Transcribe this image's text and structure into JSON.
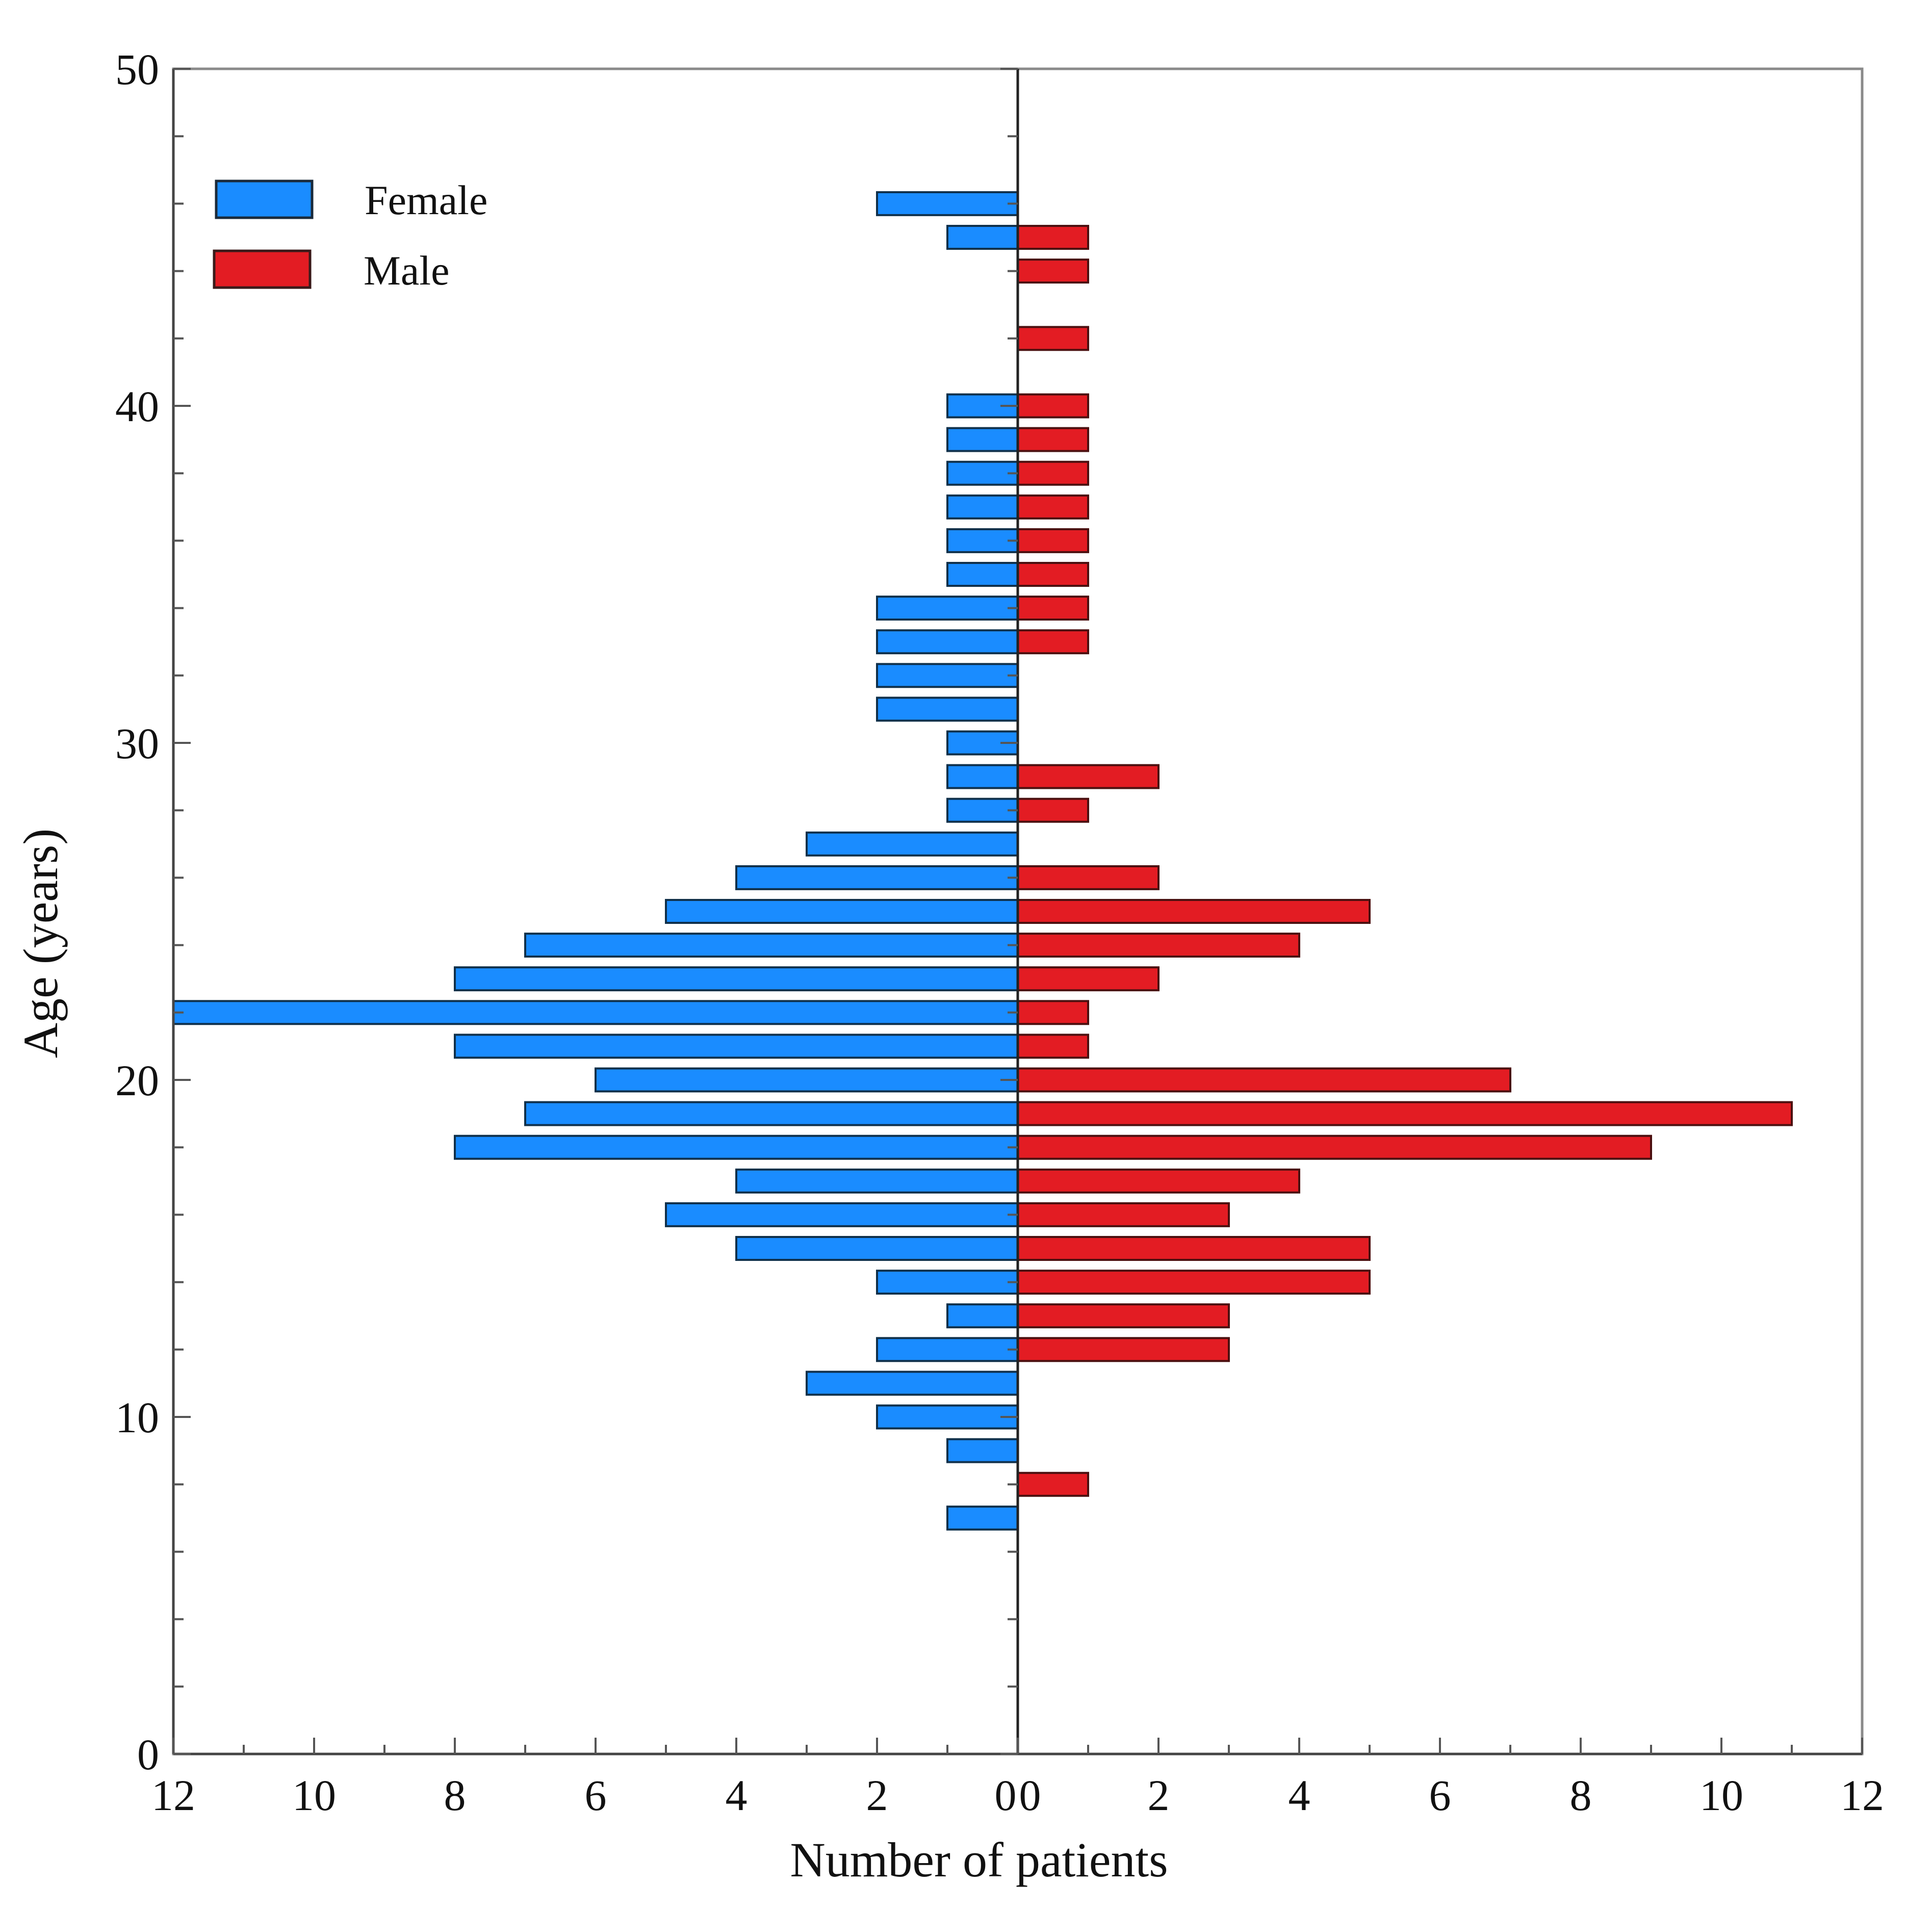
{
  "chart_data": {
    "type": "bar",
    "orientation": "horizontal",
    "layout": "population-pyramid",
    "title": "",
    "xlabel": "Number of patients",
    "ylabel": "Age (years)",
    "ylim": [
      0,
      50
    ],
    "y_ticks": [
      0,
      10,
      20,
      30,
      40,
      50
    ],
    "y_tick_labels": [
      "0",
      "10",
      "20",
      "30",
      "40",
      "50"
    ],
    "left_panel": {
      "xlim": [
        12,
        0
      ],
      "ticks": [
        12,
        10,
        8,
        6,
        4,
        2,
        0
      ],
      "tick_labels": [
        "12",
        "10",
        "8",
        "6",
        "4",
        "2",
        "0"
      ]
    },
    "right_panel": {
      "xlim": [
        0,
        12
      ],
      "ticks": [
        0,
        2,
        4,
        6,
        8,
        10,
        12
      ],
      "tick_labels": [
        "0",
        "2",
        "4",
        "6",
        "8",
        "10",
        "12"
      ]
    },
    "legend_position": "top-left",
    "colors": {
      "female": "#1a8cff",
      "male": "#e31c23"
    },
    "series": [
      {
        "name": "Female",
        "side": "left",
        "points": [
          {
            "age": 7,
            "count": 1
          },
          {
            "age": 9,
            "count": 1
          },
          {
            "age": 10,
            "count": 2
          },
          {
            "age": 11,
            "count": 3
          },
          {
            "age": 12,
            "count": 2
          },
          {
            "age": 13,
            "count": 1
          },
          {
            "age": 14,
            "count": 2
          },
          {
            "age": 15,
            "count": 4
          },
          {
            "age": 16,
            "count": 5
          },
          {
            "age": 17,
            "count": 4
          },
          {
            "age": 18,
            "count": 8
          },
          {
            "age": 19,
            "count": 7
          },
          {
            "age": 20,
            "count": 6
          },
          {
            "age": 21,
            "count": 8
          },
          {
            "age": 22,
            "count": 12
          },
          {
            "age": 23,
            "count": 8
          },
          {
            "age": 24,
            "count": 7
          },
          {
            "age": 25,
            "count": 5
          },
          {
            "age": 26,
            "count": 4
          },
          {
            "age": 27,
            "count": 3
          },
          {
            "age": 28,
            "count": 1
          },
          {
            "age": 29,
            "count": 1
          },
          {
            "age": 30,
            "count": 1
          },
          {
            "age": 31,
            "count": 2
          },
          {
            "age": 32,
            "count": 2
          },
          {
            "age": 33,
            "count": 2
          },
          {
            "age": 34,
            "count": 2
          },
          {
            "age": 35,
            "count": 1
          },
          {
            "age": 36,
            "count": 1
          },
          {
            "age": 37,
            "count": 1
          },
          {
            "age": 38,
            "count": 1
          },
          {
            "age": 39,
            "count": 1
          },
          {
            "age": 40,
            "count": 1
          },
          {
            "age": 45,
            "count": 1
          },
          {
            "age": 46,
            "count": 2
          }
        ]
      },
      {
        "name": "Male",
        "side": "right",
        "points": [
          {
            "age": 8,
            "count": 1
          },
          {
            "age": 12,
            "count": 3
          },
          {
            "age": 13,
            "count": 3
          },
          {
            "age": 14,
            "count": 5
          },
          {
            "age": 15,
            "count": 5
          },
          {
            "age": 16,
            "count": 3
          },
          {
            "age": 17,
            "count": 4
          },
          {
            "age": 18,
            "count": 9
          },
          {
            "age": 19,
            "count": 11
          },
          {
            "age": 20,
            "count": 7
          },
          {
            "age": 21,
            "count": 1
          },
          {
            "age": 22,
            "count": 1
          },
          {
            "age": 23,
            "count": 2
          },
          {
            "age": 24,
            "count": 4
          },
          {
            "age": 25,
            "count": 5
          },
          {
            "age": 26,
            "count": 2
          },
          {
            "age": 28,
            "count": 1
          },
          {
            "age": 29,
            "count": 2
          },
          {
            "age": 33,
            "count": 1
          },
          {
            "age": 34,
            "count": 1
          },
          {
            "age": 35,
            "count": 1
          },
          {
            "age": 36,
            "count": 1
          },
          {
            "age": 37,
            "count": 1
          },
          {
            "age": 38,
            "count": 1
          },
          {
            "age": 39,
            "count": 1
          },
          {
            "age": 40,
            "count": 1
          },
          {
            "age": 42,
            "count": 1
          },
          {
            "age": 44,
            "count": 1
          },
          {
            "age": 45,
            "count": 1
          }
        ]
      }
    ]
  }
}
